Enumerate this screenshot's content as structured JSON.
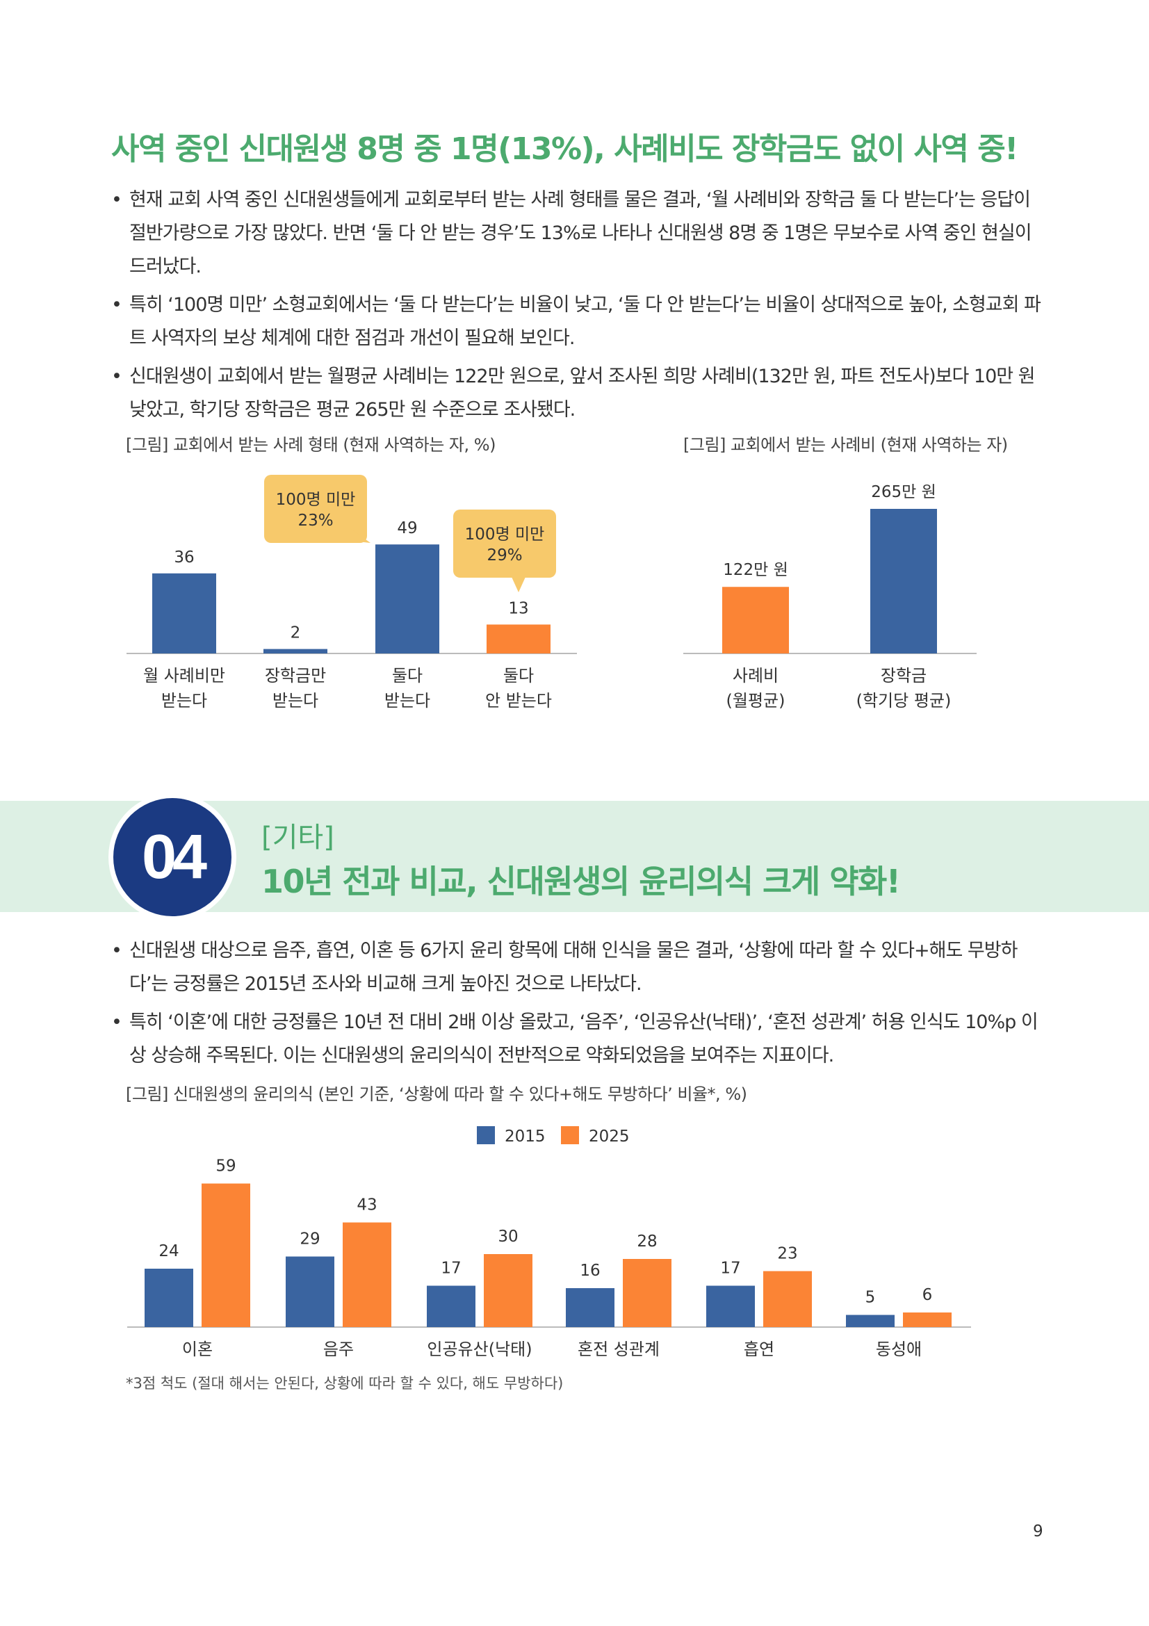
{
  "section1": {
    "headline": "사역 중인 신대원생 8명 중 1명(13%), 사례비도 장학금도 없이 사역 중!",
    "bullets": [
      "현재 교회 사역 중인 신대원생들에게 교회로부터 받는 사례 형태를 물은 결과, ‘월 사례비와 장학금 둘 다 받는다’는 응답이 절반가량으로 가장 많았다. 반면 ‘둘 다 안 받는 경우’도 13%로 나타나 신대원생 8명 중 1명은 무보수로 사역 중인 현실이 드러났다.",
      "특히 ‘100명 미만’ 소형교회에서는 ‘둘 다 받는다’는 비율이 낮고, ‘둘 다 안 받는다’는 비율이 상대적으로 높아, 소형교회 파트 사역자의 보상 체계에 대한 점검과 개선이 필요해 보인다.",
      "신대원생이 교회에서 받는 월평균 사례비는 122만 원으로, 앞서 조사된 희망 사례비(132만 원, 파트 전도사)보다 10만 원 낮았고, 학기당 장학금은 평균 265만 원 수준으로 조사됐다."
    ],
    "fig1_caption": "[그림] 교회에서 받는 사례 형태 (현재 사역하는 자, %)",
    "fig2_caption": "[그림] 교회에서 받는 사례비 (현재 사역하는 자)"
  },
  "section2": {
    "number": "04",
    "tag": "[기타]",
    "title": "10년 전과 비교, 신대원생의 윤리의식 크게 약화!",
    "bullets": [
      "신대원생 대상으로 음주, 흡연, 이혼 등 6가지 윤리 항목에 대해 인식을 물은 결과, ‘상황에 따라 할 수 있다+해도 무방하다’는 긍정률은 2015년 조사와 비교해 크게 높아진 것으로 나타났다.",
      "특히 ‘이혼’에 대한 긍정률은 10년 전 대비 2배 이상 올랐고, ‘음주’, ‘인공유산(낙태)’, ‘혼전 성관계’ 허용 인식도 10%p 이상 상승해 주목된다. 이는 신대원생의 윤리의식이 전반적으로 약화되었음을 보여주는 지표이다."
    ],
    "fig3_caption": "[그림] 신대원생의 윤리의식 (본인 기준, ‘상황에 따라 할 수 있다+해도 무방하다’ 비율*, %)",
    "footnote": "*3점 척도 (절대 해서는 안된다, 상황에 따라 할 수 있다, 해도 무방하다)"
  },
  "page_number": "9",
  "colors": {
    "green": "#4CAA6E",
    "blue": "#3A64A0",
    "orange": "#FB8435",
    "callout": "#F7C96B",
    "navy": "#1B3A82"
  },
  "chart_data": [
    {
      "type": "bar",
      "title": "[그림] 교회에서 받는 사례 형태 (현재 사역하는 자, %)",
      "categories": [
        [
          "월 사례비만",
          "받는다"
        ],
        [
          "장학금만",
          "받는다"
        ],
        [
          "둘다",
          "받는다"
        ],
        [
          "둘다",
          "안 받는다"
        ]
      ],
      "values": [
        36,
        2,
        49,
        13
      ],
      "bar_colors": [
        "#3A64A0",
        "#3A64A0",
        "#3A64A0",
        "#FB8435"
      ],
      "callouts": [
        {
          "category_index": 2,
          "lines": [
            "100명 미만",
            "23%"
          ]
        },
        {
          "category_index": 3,
          "lines": [
            "100명 미만",
            "29%"
          ]
        }
      ],
      "ylim": [
        0,
        60
      ]
    },
    {
      "type": "bar",
      "title": "[그림] 교회에서 받는 사례비 (현재 사역하는 자)",
      "categories": [
        [
          "사례비",
          "(월평균)"
        ],
        [
          "장학금",
          "(학기당 평균)"
        ]
      ],
      "values": [
        122,
        265
      ],
      "value_labels": [
        "122만 원",
        "265만 원"
      ],
      "bar_colors": [
        "#FB8435",
        "#3A64A0"
      ],
      "ylim": [
        0,
        300
      ]
    },
    {
      "type": "bar",
      "title": "[그림] 신대원생의 윤리의식 (본인 기준, ‘상황에 따라 할 수 있다+해도 무방하다’ 비율*, %)",
      "categories": [
        "이혼",
        "음주",
        "인공유산(낙태)",
        "혼전 성관계",
        "흡연",
        "동성애"
      ],
      "series": [
        {
          "name": "2015",
          "color": "#3A64A0",
          "values": [
            24,
            29,
            17,
            16,
            17,
            5
          ]
        },
        {
          "name": "2025",
          "color": "#FB8435",
          "values": [
            59,
            43,
            30,
            28,
            23,
            6
          ]
        }
      ],
      "legend": "top-center",
      "ylim": [
        0,
        65
      ]
    }
  ]
}
